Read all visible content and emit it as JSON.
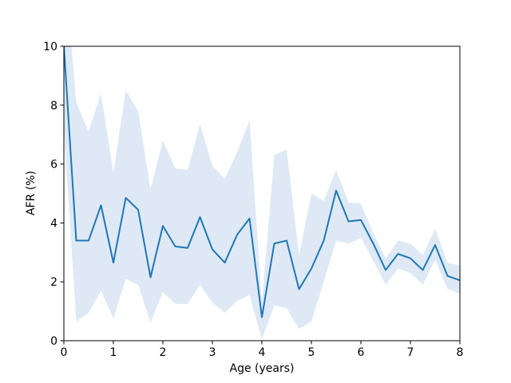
{
  "figure": {
    "xlabel": "Age (years)",
    "ylabel": "AFR (%)"
  },
  "chart_data": {
    "type": "line",
    "title": "",
    "xlabel": "Age (years)",
    "ylabel": "AFR (%)",
    "xlim": [
      0,
      8
    ],
    "ylim": [
      0,
      10
    ],
    "xticks": [
      0,
      1,
      2,
      3,
      4,
      5,
      6,
      7,
      8
    ],
    "yticks": [
      0,
      2,
      4,
      6,
      8,
      10
    ],
    "grid": false,
    "legend": null,
    "x": [
      0,
      0.25,
      0.5,
      0.75,
      1,
      1.25,
      1.5,
      1.75,
      2,
      2.25,
      2.5,
      2.75,
      3,
      3.25,
      3.5,
      3.75,
      4,
      4.25,
      4.5,
      4.75,
      5,
      5.25,
      5.5,
      5.75,
      6,
      6.25,
      6.5,
      6.75,
      7,
      7.25,
      7.5,
      7.75,
      8
    ],
    "series": [
      {
        "name": "AFR mean",
        "color": "#1f77b4",
        "values": [
          10.0,
          3.4,
          3.4,
          4.6,
          2.65,
          4.85,
          4.45,
          2.15,
          3.9,
          3.2,
          3.15,
          4.2,
          3.1,
          2.65,
          3.6,
          4.15,
          0.8,
          3.3,
          3.4,
          1.75,
          2.45,
          3.4,
          5.1,
          4.05,
          4.1,
          3.3,
          2.4,
          2.95,
          2.8,
          2.4,
          3.25,
          2.2,
          2.05
        ]
      }
    ],
    "band": {
      "name": "confidence interval",
      "color": "#dee9f5",
      "upper": [
        13.0,
        8.1,
        7.1,
        8.4,
        5.7,
        8.5,
        7.8,
        5.15,
        6.8,
        5.85,
        5.8,
        7.35,
        5.95,
        5.5,
        6.4,
        7.5,
        1.3,
        6.3,
        6.5,
        2.9,
        5.0,
        4.75,
        5.8,
        4.7,
        4.65,
        3.65,
        2.8,
        3.4,
        3.3,
        2.9,
        3.8,
        2.65,
        2.55
      ],
      "lower": [
        7.2,
        0.65,
        0.95,
        1.7,
        0.75,
        2.1,
        1.9,
        0.6,
        1.65,
        1.25,
        1.25,
        1.9,
        1.3,
        0.95,
        1.35,
        1.55,
        0.05,
        1.2,
        1.1,
        0.4,
        0.65,
        2.0,
        3.4,
        3.3,
        3.5,
        2.7,
        1.9,
        2.45,
        2.3,
        1.9,
        2.75,
        1.75,
        1.6
      ]
    },
    "axis_color": "#000000",
    "background": "#ffffff"
  }
}
